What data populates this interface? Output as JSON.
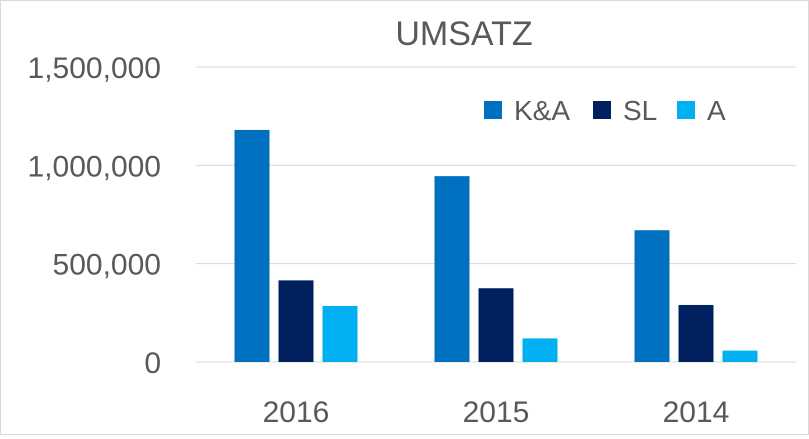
{
  "chart_data": {
    "type": "bar",
    "title": "UMSATZ",
    "xlabel": "",
    "ylabel": "",
    "categories": [
      "2016",
      "2015",
      "2014"
    ],
    "series": [
      {
        "name": "K&A",
        "color": "#0070C0",
        "values": [
          1180000,
          945000,
          670000
        ]
      },
      {
        "name": "SL",
        "color": "#002060",
        "values": [
          415000,
          375000,
          290000
        ]
      },
      {
        "name": "A",
        "color": "#00B0F0",
        "values": [
          285000,
          120000,
          58000
        ]
      }
    ],
    "ylim": [
      0,
      1500000
    ],
    "y_ticks": [
      "0",
      "500,000",
      "1,000,000",
      "1,500,000"
    ],
    "y_tick_values": [
      0,
      500000,
      1000000,
      1500000
    ],
    "grid": true,
    "legend_position": "top-right",
    "gridline_color": "#d9d9d9",
    "axis_color": "#d9d9d9"
  }
}
